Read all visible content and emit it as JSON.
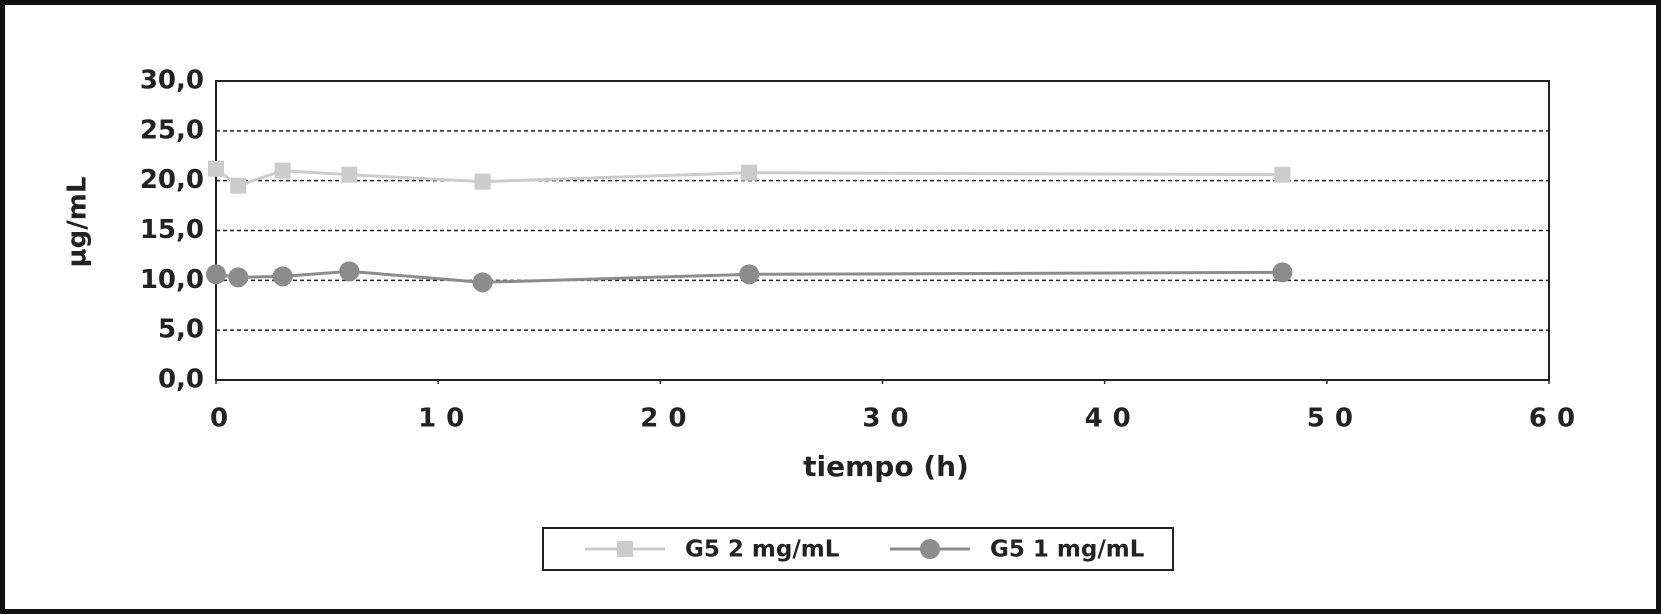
{
  "chart_data": {
    "type": "line",
    "y_label": "µg/mL",
    "x_label": "tiempo (h)",
    "x": [
      0,
      1,
      3,
      6,
      12,
      24,
      48
    ],
    "series": [
      {
        "name": "G5 2 mg/mL",
        "color": "#cccccc",
        "marker": "square",
        "values": [
          21.2,
          19.5,
          21.0,
          20.6,
          19.9,
          20.8,
          20.6
        ]
      },
      {
        "name": "G5 1 mg/mL",
        "color": "#8c8c8c",
        "marker": "circle",
        "values": [
          10.6,
          10.3,
          10.4,
          10.9,
          9.8,
          10.6,
          10.8
        ]
      }
    ],
    "xlim": [
      0,
      60
    ],
    "xticks": [
      0,
      10,
      20,
      30,
      40,
      50,
      60
    ],
    "ylim": [
      0,
      30
    ],
    "yticks": [
      {
        "value": 0,
        "label": "0,0"
      },
      {
        "value": 5,
        "label": "5,0"
      },
      {
        "value": 10,
        "label": "10,0"
      },
      {
        "value": 15,
        "label": "15,0"
      },
      {
        "value": 20,
        "label": "20,0"
      },
      {
        "value": 25,
        "label": "25,0"
      },
      {
        "value": 30,
        "label": "30,0"
      }
    ],
    "grid": true,
    "legend": "bottom"
  }
}
